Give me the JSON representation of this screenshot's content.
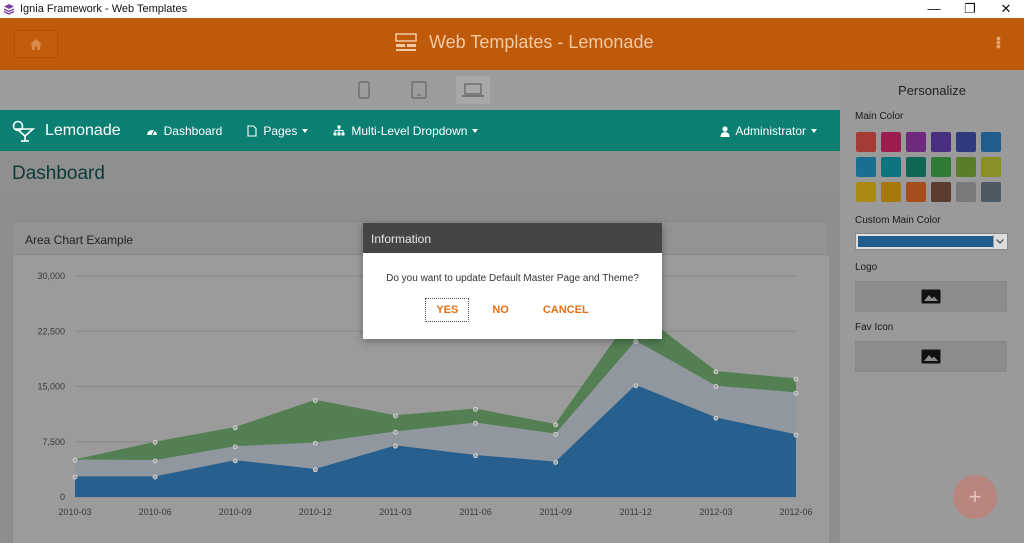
{
  "window": {
    "title": "Ignia Framework - Web Templates",
    "controls": [
      "—",
      "❐",
      "✕"
    ]
  },
  "header": {
    "title": "Web Templates - Lemonade",
    "color": "#bf5a0a"
  },
  "devices": [
    "phone-icon",
    "tablet-icon",
    "laptop-icon"
  ],
  "lemonade": {
    "brand": "Lemonade",
    "nav": {
      "dashboard": "Dashboard",
      "pages": "Pages",
      "multilevel": "Multi-Level Dropdown",
      "admin": "Administrator"
    },
    "page_title": "Dashboard",
    "panel_title": "Area Chart Example"
  },
  "sidebar": {
    "title": "Personalize",
    "main_color_label": "Main Color",
    "custom_color_label": "Custom Main Color",
    "logo_label": "Logo",
    "fav_label": "Fav Icon",
    "swatches": [
      "#a63a35",
      "#9b1d4e",
      "#6e2a7d",
      "#4a2f80",
      "#2e3a7d",
      "#1f5d8f",
      "#1b6e8f",
      "#0d7480",
      "#0f6656",
      "#2f7a34",
      "#5b7d2a",
      "#8a8f25",
      "#a98a16",
      "#a5790e",
      "#a34e1c",
      "#5a3c30",
      "#7a7a7a",
      "#4d5a63"
    ]
  },
  "modal": {
    "title": "Information",
    "message": "Do you want to update Default Master Page and Theme?",
    "yes": "YES",
    "no": "NO",
    "cancel": "CANCEL"
  },
  "chart_data": {
    "type": "area",
    "title": "Area Chart Example",
    "x": [
      "2010-03",
      "2010-06",
      "2010-09",
      "2010-12",
      "2011-03",
      "2011-06",
      "2011-09",
      "2011-12",
      "2012-03",
      "2012-06"
    ],
    "yticks": [
      "0",
      "7,500",
      "15,000",
      "22,500",
      "30,000"
    ],
    "ylim": [
      0,
      30000
    ],
    "series": [
      {
        "color": "#2f7fc0",
        "values": [
          2700,
          2700,
          4900,
          3700,
          6900,
          5600,
          4700,
          15100,
          10700,
          8400
        ]
      },
      {
        "color": "#c3cfdc",
        "values": [
          2300,
          2200,
          1900,
          3600,
          1900,
          4400,
          3800,
          6000,
          4300,
          5700
        ]
      },
      {
        "color": "#6db56c",
        "values": [
          0,
          2500,
          2600,
          5800,
          2200,
          1900,
          1300,
          4200,
          2000,
          1900
        ]
      }
    ],
    "grid": true
  }
}
